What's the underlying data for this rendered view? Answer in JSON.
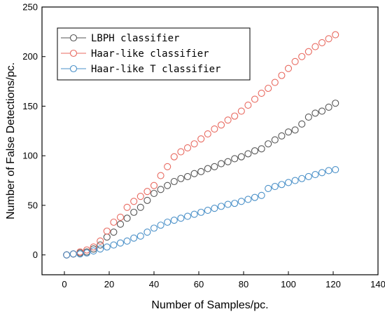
{
  "chart_data": {
    "type": "scatter",
    "title": "",
    "xlabel": "Number of Samples/pc.",
    "ylabel": "Number of False Detections/pc.",
    "xlim": [
      -10,
      140
    ],
    "ylim": [
      -20,
      250
    ],
    "xticks": [
      0,
      20,
      40,
      60,
      80,
      100,
      120,
      140
    ],
    "yticks": [
      0,
      50,
      100,
      150,
      200,
      250
    ],
    "grid": false,
    "legend_position": "top-left",
    "x": [
      1,
      4,
      7,
      10,
      13,
      16,
      19,
      22,
      25,
      28,
      31,
      34,
      37,
      40,
      43,
      46,
      49,
      52,
      55,
      58,
      61,
      64,
      67,
      70,
      73,
      76,
      79,
      82,
      85,
      88,
      91,
      94,
      97,
      100,
      103,
      106,
      109,
      112,
      115,
      118,
      121
    ],
    "series": [
      {
        "name": "LBPH classifier",
        "color": "#555555",
        "marker": "open-circle",
        "values": [
          0,
          1,
          2,
          3,
          6,
          10,
          18,
          23,
          31,
          37,
          43,
          48,
          55,
          62,
          66,
          70,
          74,
          77,
          79,
          82,
          84,
          87,
          89,
          92,
          94,
          97,
          99,
          102,
          105,
          107,
          112,
          116,
          120,
          124,
          126,
          132,
          139,
          143,
          145,
          149,
          153
        ]
      },
      {
        "name": "Haar-like classifier",
        "color": "#e8695f",
        "marker": "open-circle",
        "values": [
          0,
          1,
          3,
          5,
          8,
          14,
          24,
          33,
          38,
          48,
          54,
          59,
          64,
          70,
          80,
          89,
          99,
          104,
          108,
          112,
          117,
          122,
          127,
          131,
          136,
          140,
          145,
          151,
          157,
          163,
          168,
          174,
          181,
          188,
          195,
          200,
          205,
          210,
          214,
          218,
          222
        ]
      },
      {
        "name": "Haar-like T classifier",
        "color": "#4a90c8",
        "marker": "open-circle",
        "values": [
          0,
          1,
          1,
          2,
          4,
          6,
          8,
          10,
          12,
          14,
          17,
          19,
          23,
          27,
          30,
          33,
          35,
          37,
          39,
          41,
          43,
          45,
          47,
          49,
          51,
          52,
          54,
          56,
          58,
          60,
          67,
          69,
          71,
          73,
          75,
          77,
          79,
          81,
          83,
          85,
          86
        ]
      }
    ]
  }
}
